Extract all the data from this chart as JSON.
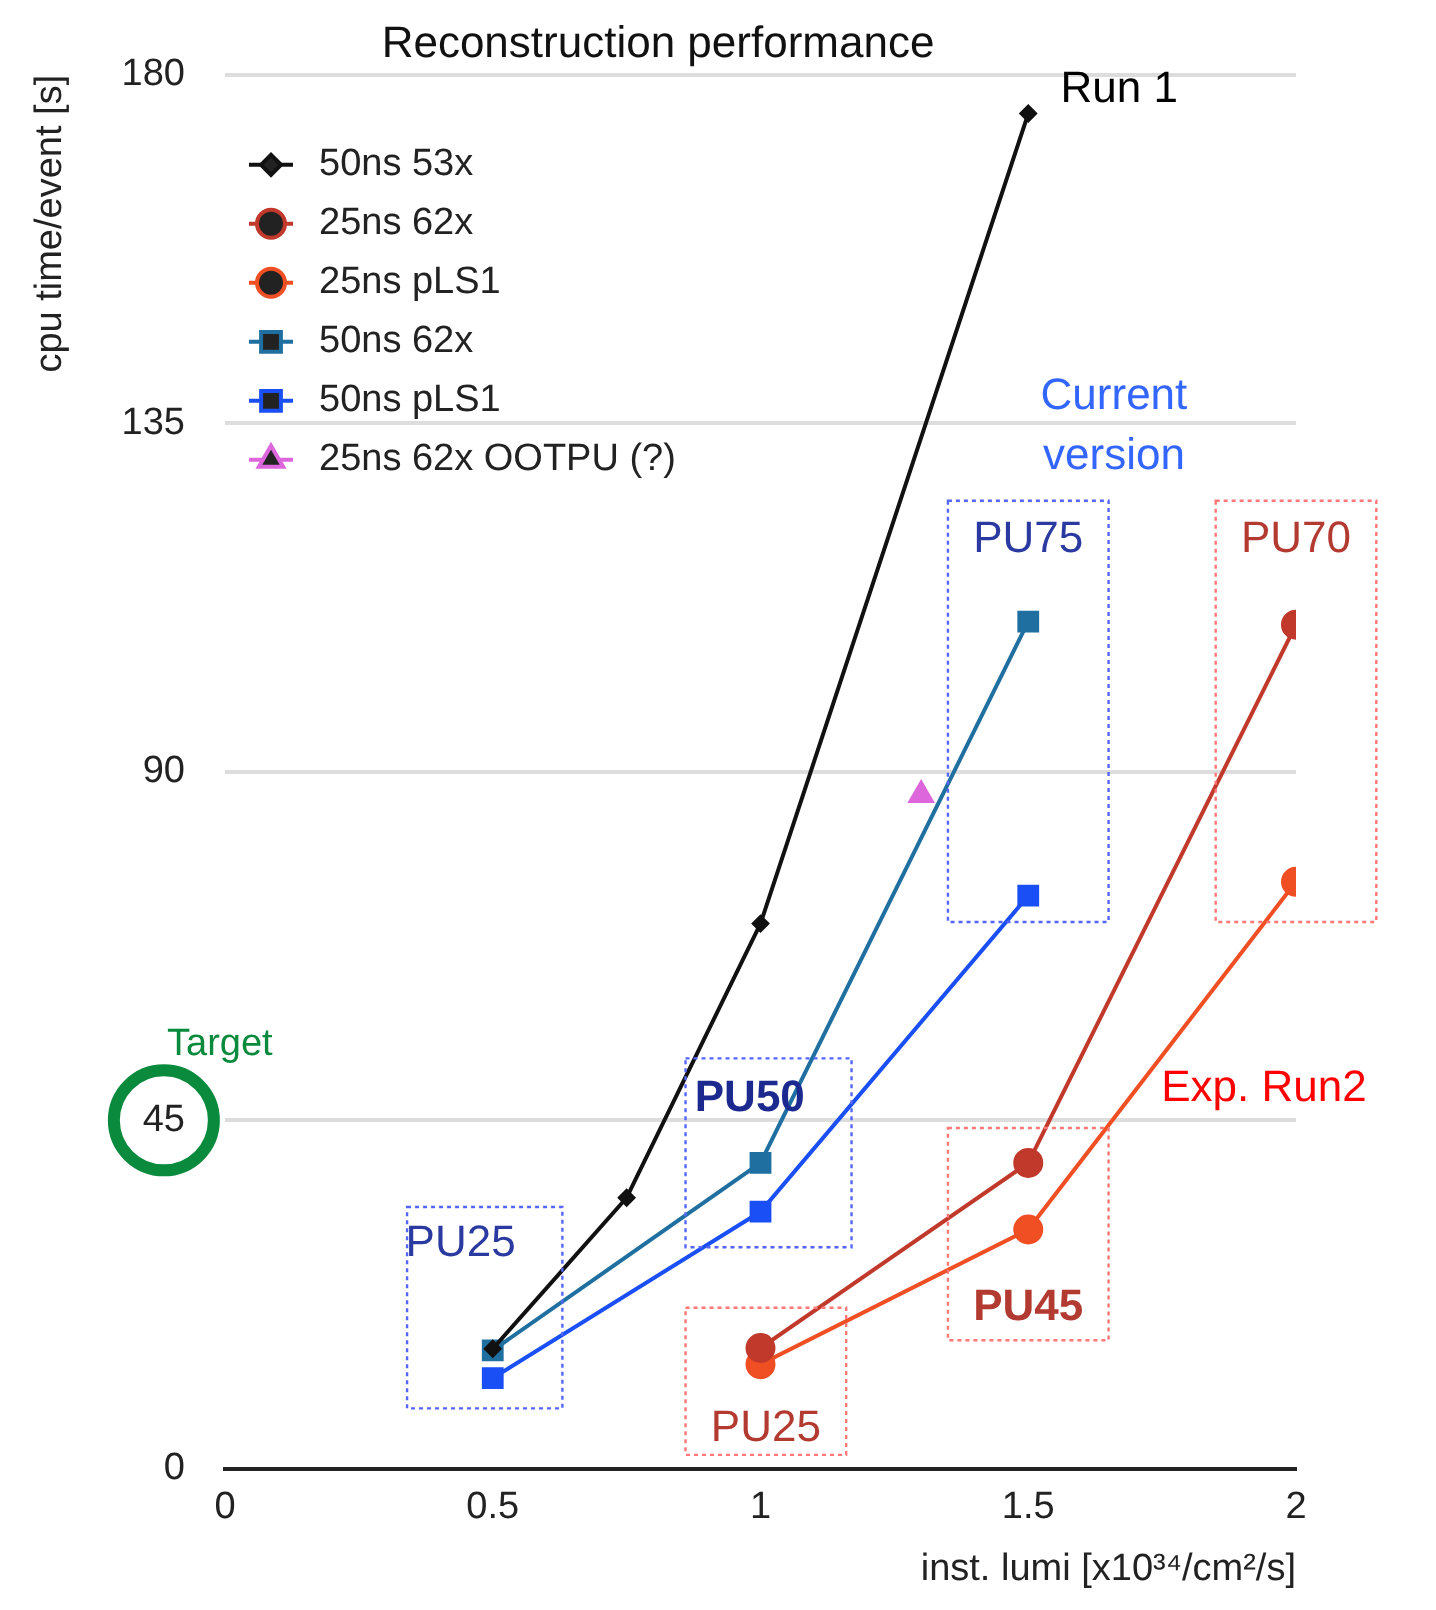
{
  "chart_data": {
    "type": "line",
    "title": "Reconstruction performance",
    "xlabel": "inst. lumi [x10³⁴/cm²/s]",
    "ylabel": "cpu time/event [s]",
    "xlim": [
      0,
      2
    ],
    "xticks": [
      0,
      0.5,
      1,
      1.5,
      2
    ],
    "ylim": [
      0,
      180
    ],
    "yticks": [
      0,
      45,
      90,
      135,
      180
    ],
    "grid": "y",
    "legend": "top left",
    "series": [
      {
        "name": "50ns 53x",
        "color": "#111111",
        "marker": "diamond",
        "x": [
          0.5,
          0.75,
          1,
          1.5
        ],
        "values": [
          15.5,
          35,
          70.4,
          175
        ]
      },
      {
        "name": "25ns 62x",
        "color": "#c0392b",
        "marker": "circle",
        "x": [
          1,
          1.5,
          2
        ],
        "values": [
          15.6,
          39.5,
          109
        ]
      },
      {
        "name": "25ns pLS1",
        "color": "#f04e23",
        "marker": "circle",
        "x": [
          1,
          1.5,
          2
        ],
        "values": [
          13.5,
          30.9,
          75.8
        ]
      },
      {
        "name": "50ns 62x",
        "color": "#1f6fa0",
        "marker": "square",
        "x": [
          0.5,
          1,
          1.5
        ],
        "values": [
          15.3,
          39.5,
          109.4
        ]
      },
      {
        "name": "50ns pLS1",
        "color": "#1a4ff5",
        "marker": "square",
        "x": [
          0.5,
          1,
          1.5
        ],
        "values": [
          11.7,
          33.2,
          74
        ]
      },
      {
        "name": "25ns 62x OOTPU (?)",
        "color": "#dd66dd",
        "type": "scatter",
        "marker": "triangle",
        "x": [
          1.3
        ],
        "values": [
          87
        ]
      }
    ],
    "annotations": [
      "Run 1",
      "Current version",
      "Exp. Run2",
      "Target",
      "PU25",
      "PU50",
      "PU75",
      "PU70",
      "PU25",
      "PU45"
    ]
  }
}
